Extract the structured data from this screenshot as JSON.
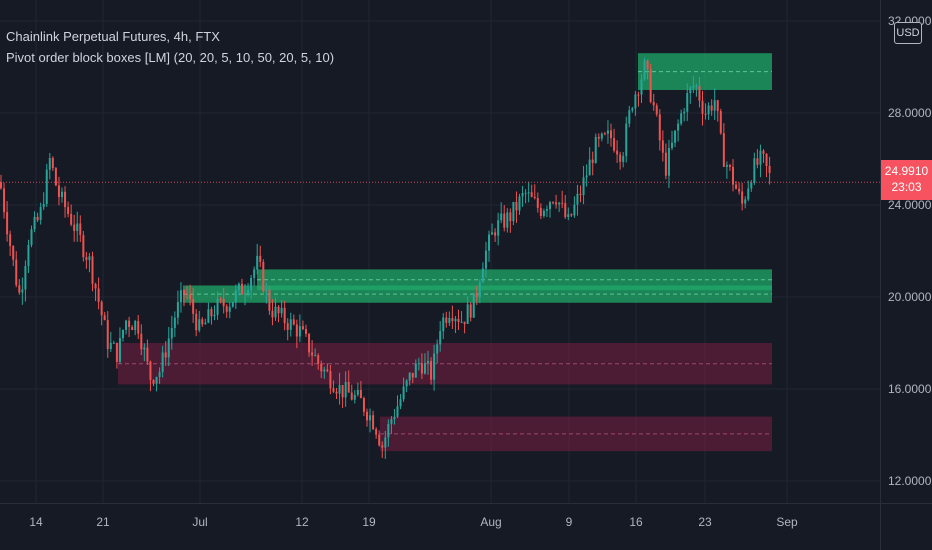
{
  "legend": {
    "title": "Chainlink Perpetual Futures, 4h, FTX",
    "indicator": "Pivot order block boxes [LM] (20, 20, 5, 10, 50, 20, 5, 10)"
  },
  "price_scale": {
    "currency": "USD",
    "last_price": "24.9910",
    "countdown": "23:03"
  },
  "colors": {
    "background": "#161a25",
    "up": "#26a69a",
    "down": "#ef5350",
    "bull_box": "#1fa968",
    "bear_box": "#7a1f44",
    "last_price": "#f7525f"
  },
  "chart_data": {
    "type": "candlestick",
    "title": "Chainlink Perpetual Futures, 4h, FTX",
    "ylim": [
      11.6,
      32.0
    ],
    "yticks": [
      "32.0000",
      "28.0000",
      "24.0000",
      "20.0000",
      "16.0000",
      "12.0000"
    ],
    "xticks": [
      "14",
      "21",
      "Jul",
      "12",
      "19",
      "Aug",
      "9",
      "16",
      "23",
      "Sep"
    ],
    "last_price": 24.991,
    "price_path": [
      [
        0,
        25.0
      ],
      [
        15,
        21.0
      ],
      [
        20,
        20.0
      ],
      [
        28,
        22.5
      ],
      [
        40,
        23.5
      ],
      [
        50,
        26.0
      ],
      [
        58,
        24.5
      ],
      [
        70,
        23.5
      ],
      [
        90,
        21.5
      ],
      [
        108,
        18.0
      ],
      [
        118,
        17.5
      ],
      [
        125,
        19.0
      ],
      [
        138,
        18.8
      ],
      [
        150,
        16.5
      ],
      [
        160,
        16.8
      ],
      [
        175,
        19.2
      ],
      [
        185,
        20.3
      ],
      [
        200,
        18.5
      ],
      [
        215,
        19.5
      ],
      [
        230,
        19.8
      ],
      [
        245,
        20.5
      ],
      [
        258,
        21.5
      ],
      [
        270,
        19.5
      ],
      [
        285,
        19.0
      ],
      [
        300,
        18.5
      ],
      [
        320,
        17.0
      ],
      [
        340,
        16.0
      ],
      [
        360,
        15.5
      ],
      [
        375,
        14.5
      ],
      [
        382,
        13.5
      ],
      [
        392,
        14.8
      ],
      [
        400,
        15.5
      ],
      [
        410,
        16.5
      ],
      [
        420,
        17.2
      ],
      [
        432,
        16.6
      ],
      [
        440,
        18.8
      ],
      [
        450,
        19.5
      ],
      [
        462,
        19.0
      ],
      [
        475,
        19.8
      ],
      [
        482,
        21.5
      ],
      [
        495,
        23.0
      ],
      [
        510,
        23.5
      ],
      [
        525,
        24.5
      ],
      [
        540,
        23.8
      ],
      [
        555,
        24.5
      ],
      [
        568,
        23.2
      ],
      [
        580,
        24.5
      ],
      [
        595,
        26.5
      ],
      [
        610,
        27.0
      ],
      [
        622,
        26.2
      ],
      [
        632,
        28.5
      ],
      [
        645,
        30.0
      ],
      [
        655,
        28.0
      ],
      [
        665,
        25.5
      ],
      [
        675,
        27.0
      ],
      [
        685,
        28.5
      ],
      [
        695,
        29.3
      ],
      [
        705,
        28.0
      ],
      [
        715,
        28.6
      ],
      [
        722,
        26.3
      ],
      [
        732,
        25.2
      ],
      [
        742,
        24.0
      ],
      [
        752,
        25.5
      ],
      [
        762,
        26.0
      ],
      [
        772,
        24.99
      ]
    ],
    "order_blocks": [
      {
        "kind": "bullish",
        "x0": 638,
        "x1": 772,
        "top": 30.6,
        "bottom": 29.0
      },
      {
        "kind": "bullish",
        "x0": 257,
        "x1": 772,
        "top": 21.2,
        "bottom": 20.3
      },
      {
        "kind": "bullish",
        "x0": 183,
        "x1": 772,
        "top": 20.5,
        "bottom": 19.75
      },
      {
        "kind": "bearish",
        "x0": 118,
        "x1": 772,
        "top": 18.0,
        "bottom": 16.2
      },
      {
        "kind": "bearish",
        "x0": 380,
        "x1": 772,
        "top": 14.8,
        "bottom": 13.3
      }
    ]
  }
}
